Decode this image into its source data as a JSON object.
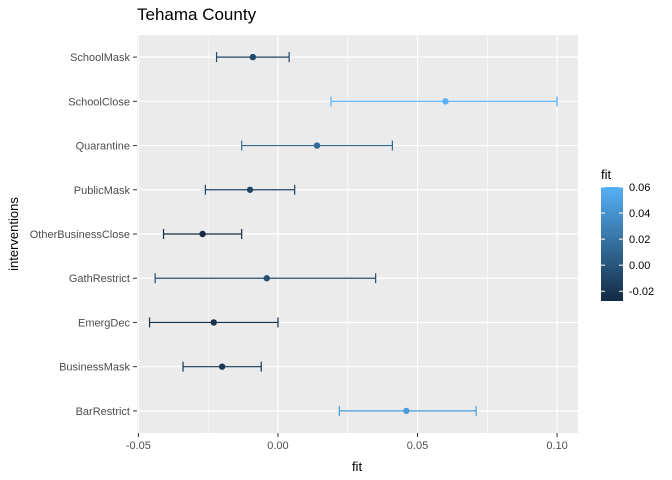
{
  "chart_data": {
    "type": "errorbar",
    "title": "Tehama County",
    "xlabel": "fit",
    "ylabel": "interventions",
    "xlim": [
      -0.0505,
      0.1075
    ],
    "x_ticks": [
      -0.05,
      0.0,
      0.05,
      0.1
    ],
    "x_tick_labels": [
      "-0.05",
      "0.00",
      "0.05",
      "0.10"
    ],
    "grid": true,
    "categories": [
      "SchoolMask",
      "SchoolClose",
      "Quarantine",
      "PublicMask",
      "OtherBusinessClose",
      "GathRestrict",
      "EmergDec",
      "BusinessMask",
      "BarRestrict"
    ],
    "points": [
      {
        "name": "SchoolMask",
        "fit": -0.009,
        "lower": -0.022,
        "upper": 0.004
      },
      {
        "name": "SchoolClose",
        "fit": 0.06,
        "lower": 0.019,
        "upper": 0.1
      },
      {
        "name": "Quarantine",
        "fit": 0.014,
        "lower": -0.013,
        "upper": 0.041
      },
      {
        "name": "PublicMask",
        "fit": -0.01,
        "lower": -0.026,
        "upper": 0.006
      },
      {
        "name": "OtherBusinessClose",
        "fit": -0.027,
        "lower": -0.041,
        "upper": -0.013
      },
      {
        "name": "GathRestrict",
        "fit": -0.004,
        "lower": -0.044,
        "upper": 0.035
      },
      {
        "name": "EmergDec",
        "fit": -0.023,
        "lower": -0.046,
        "upper": 0.0
      },
      {
        "name": "BusinessMask",
        "fit": -0.02,
        "lower": -0.034,
        "upper": -0.006
      },
      {
        "name": "BarRestrict",
        "fit": 0.046,
        "lower": 0.022,
        "upper": 0.071
      }
    ],
    "legend": {
      "title": "fit",
      "position": "right",
      "range": [
        -0.0275,
        0.06
      ],
      "ticks": [
        -0.02,
        0.0,
        0.02,
        0.04,
        0.06
      ],
      "tick_labels": [
        "-0.02",
        "0.00",
        "0.02",
        "0.04",
        "0.06"
      ],
      "color_low": "#132b43",
      "color_high": "#56b1f7"
    },
    "panel_background": "#ebebeb",
    "grid_color": "#ffffff"
  }
}
